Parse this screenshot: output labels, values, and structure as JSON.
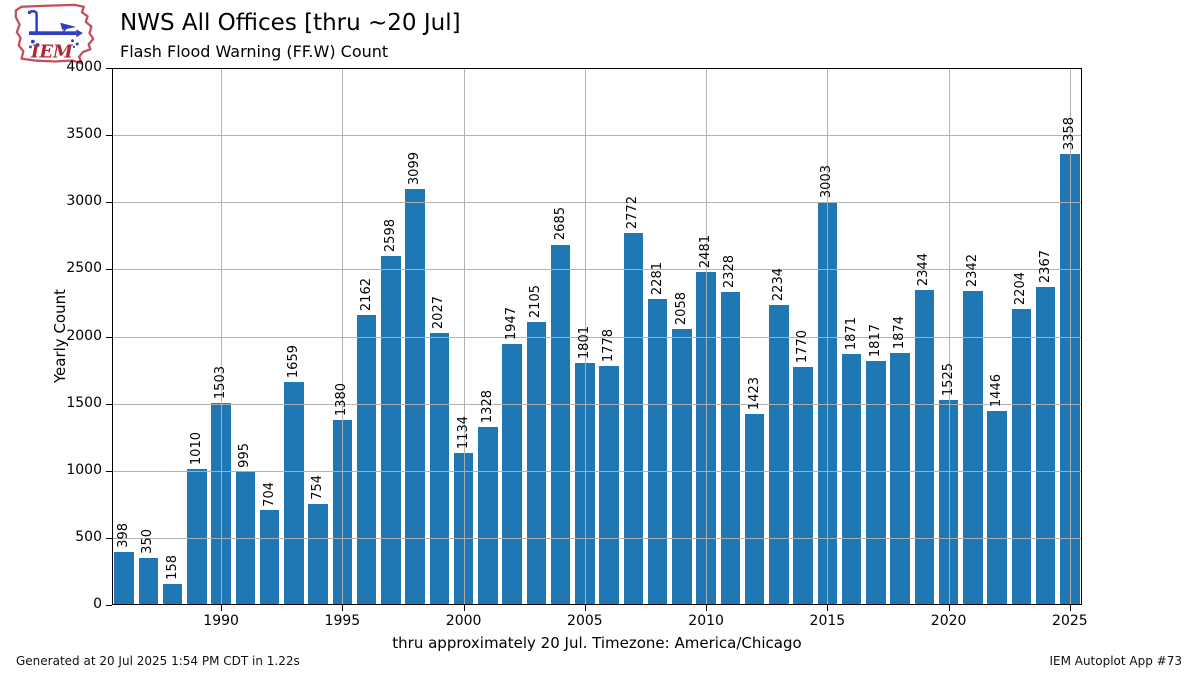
{
  "header": {
    "logo_text": "IEM",
    "title": "NWS All Offices [thru ~20 Jul]",
    "subtitle": "Flash Flood Warning (FF.W) Count"
  },
  "chart_data": {
    "type": "bar",
    "title": "NWS All Offices [thru ~20 Jul]",
    "subtitle": "Flash Flood Warning (FF.W) Count",
    "xlabel": "thru approximately 20 Jul. Timezone: America/Chicago",
    "ylabel": "Yearly Count",
    "ylim": [
      0,
      4000
    ],
    "yticks": [
      0,
      500,
      1000,
      1500,
      2000,
      2500,
      3000,
      3500,
      4000
    ],
    "xticks": [
      1990,
      1995,
      2000,
      2005,
      2010,
      2015,
      2020,
      2025
    ],
    "categories": [
      1986,
      1987,
      1988,
      1989,
      1990,
      1991,
      1992,
      1993,
      1994,
      1995,
      1996,
      1997,
      1998,
      1999,
      2000,
      2001,
      2002,
      2003,
      2004,
      2005,
      2006,
      2007,
      2008,
      2009,
      2010,
      2011,
      2012,
      2013,
      2014,
      2015,
      2016,
      2017,
      2018,
      2019,
      2020,
      2021,
      2022,
      2023,
      2024,
      2025
    ],
    "values": [
      398,
      350,
      158,
      1010,
      1503,
      995,
      704,
      1659,
      754,
      1380,
      2162,
      2598,
      3099,
      2027,
      1134,
      1328,
      1947,
      2105,
      2685,
      1801,
      1778,
      2772,
      2281,
      2058,
      2481,
      2328,
      1423,
      2234,
      1770,
      3003,
      1871,
      1817,
      1874,
      2344,
      1525,
      2342,
      1446,
      2204,
      2367,
      3358
    ],
    "bar_color": "#1f77b4",
    "grid": true,
    "grid_color": "#b0b0b0",
    "grid_above_bars": true,
    "data_labels": "values rotated 90 degrees above bars",
    "legend": "none"
  },
  "footer": {
    "generated": "Generated at 20 Jul 2025 1:54 PM CDT in 1.22s",
    "app": "IEM Autoplot App #73"
  }
}
